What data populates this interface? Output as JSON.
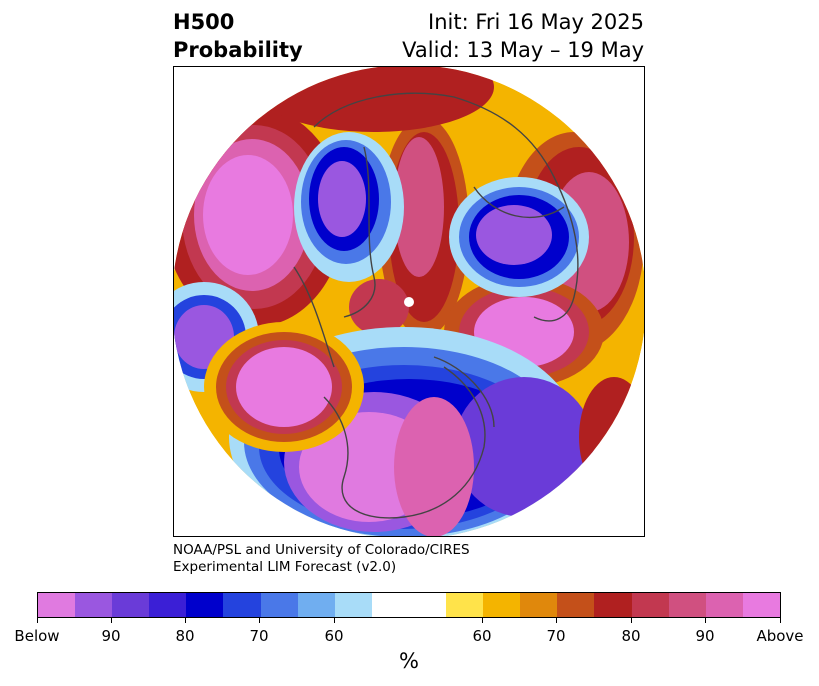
{
  "title": {
    "left_line1": "H500",
    "left_line2": "Probability",
    "init": "Init: Fri 16 May 2025",
    "valid": "Valid: 13 May – 19 May"
  },
  "credit": {
    "line1": "NOAA/PSL and University of Colorado/CIRES",
    "line2": "Experimental LIM Forecast (v2.0)"
  },
  "colorbar": {
    "unit": "%",
    "colors": [
      "#e07ae0",
      "#9a57e0",
      "#6a3bd8",
      "#3b1fd6",
      "#0000cc",
      "#2443de",
      "#4a78e8",
      "#70aef0",
      "#a8dcf8",
      "#ffffff",
      "#ffffff",
      "#ffe34a",
      "#f4b400",
      "#e0880c",
      "#c4501a",
      "#b02020",
      "#c23850",
      "#d05080",
      "#dc62b0",
      "#e87ae0"
    ],
    "tick_labels": [
      "Below",
      "90",
      "80",
      "70",
      "60",
      "60",
      "70",
      "80",
      "90",
      "Above"
    ]
  }
}
